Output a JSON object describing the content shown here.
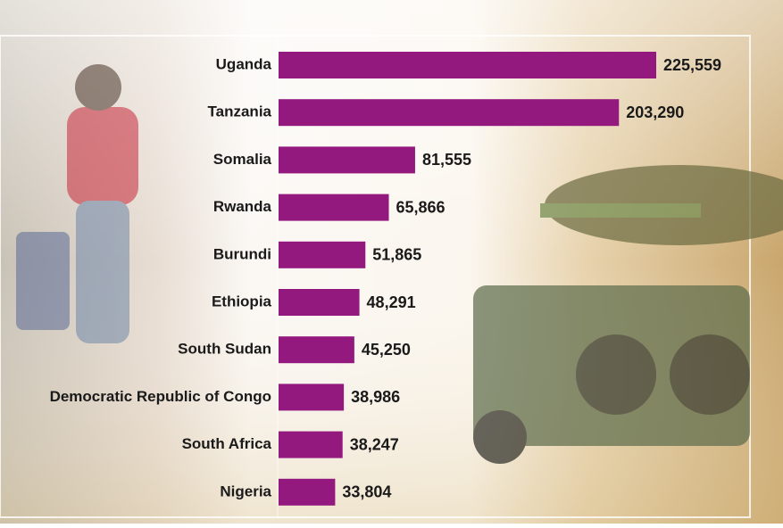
{
  "chart_data": {
    "type": "bar",
    "orientation": "horizontal",
    "categories": [
      "Uganda",
      "Tanzania",
      "Somalia",
      "Rwanda",
      "Burundi",
      "Ethiopia",
      "South Sudan",
      "Democratic Republic of Congo",
      "South Africa",
      "Nigeria"
    ],
    "values": [
      225559,
      203290,
      81555,
      65866,
      51865,
      48291,
      45250,
      38986,
      38247,
      33804
    ],
    "value_labels": [
      "225,559",
      "203,290",
      "81,555",
      "65,866",
      "51,865",
      "48,291",
      "45,250",
      "38,986",
      "38,247",
      "33,804"
    ],
    "color": "#93197f"
  }
}
